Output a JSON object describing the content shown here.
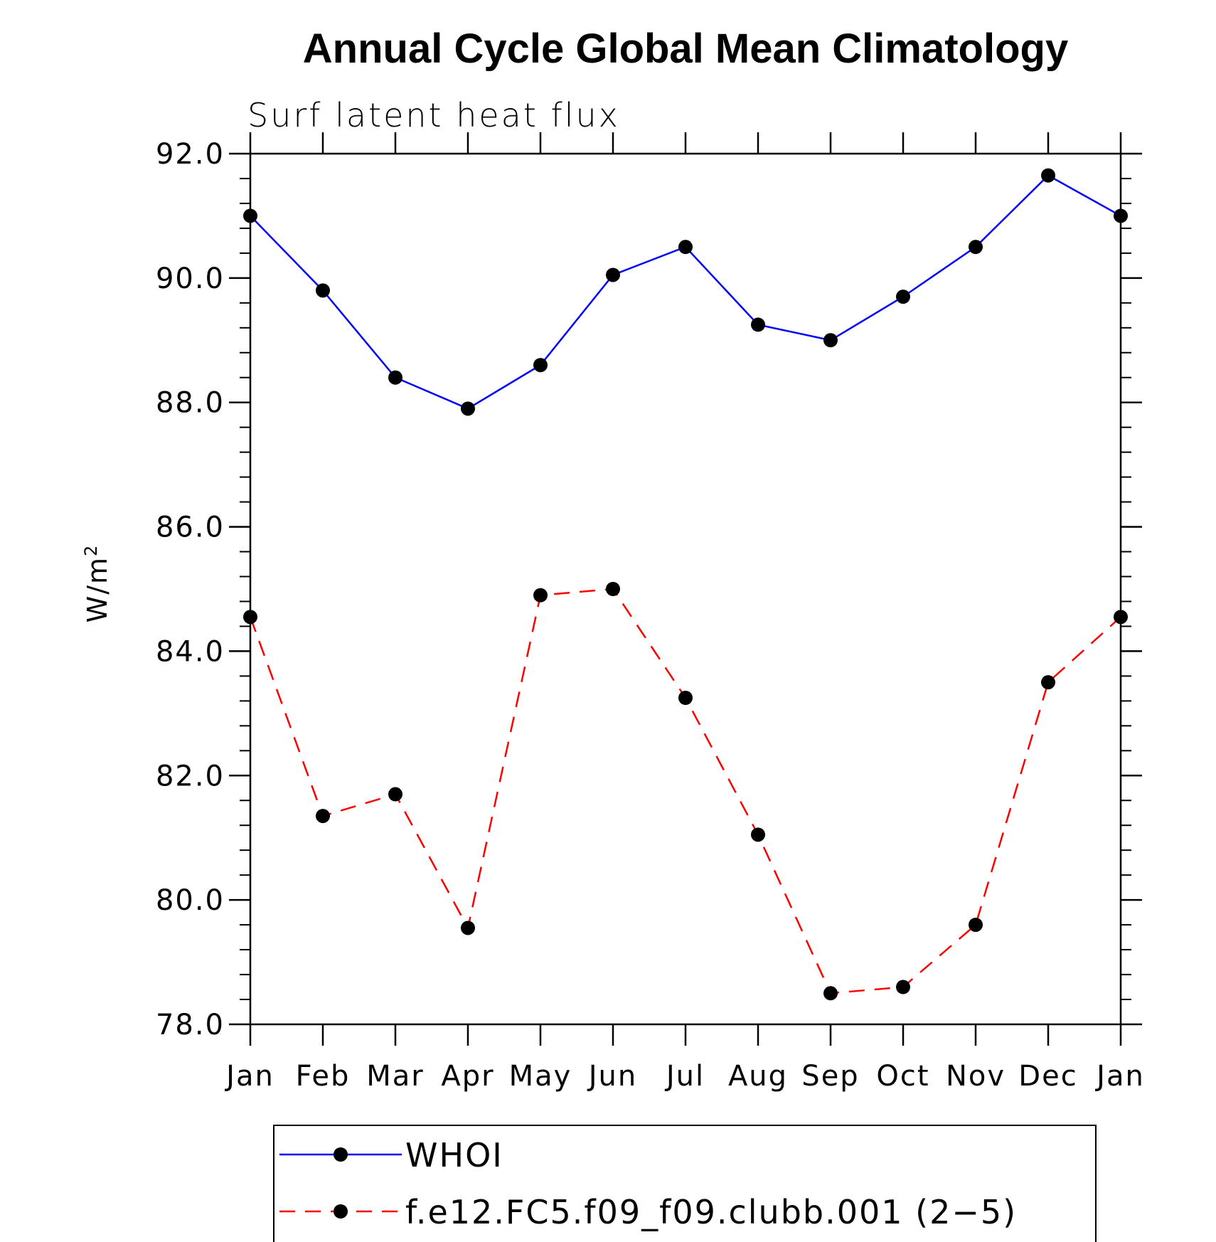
{
  "chart_data": {
    "type": "line",
    "title": "Annual Cycle Global Mean Climatology",
    "subtitle": "Surf latent heat flux",
    "ylabel": "W/m",
    "ylabel_sup": "2",
    "xlabel": "",
    "categories": [
      "Jan",
      "Feb",
      "Mar",
      "Apr",
      "May",
      "Jun",
      "Jul",
      "Aug",
      "Sep",
      "Oct",
      "Nov",
      "Dec",
      "Jan"
    ],
    "ylim": [
      78.0,
      92.0
    ],
    "yticks": [
      78.0,
      80.0,
      82.0,
      84.0,
      86.0,
      88.0,
      90.0,
      92.0
    ],
    "ytick_labels": [
      "78.0",
      "80.0",
      "82.0",
      "84.0",
      "86.0",
      "88.0",
      "90.0",
      "92.0"
    ],
    "grid": false,
    "legend_position": "bottom",
    "series": [
      {
        "name": "WHOI",
        "color": "#0000ff",
        "dash": "solid",
        "marker": "filled-circle",
        "values": [
          91.0,
          89.8,
          88.4,
          87.9,
          88.6,
          90.05,
          90.5,
          89.25,
          89.0,
          89.7,
          90.5,
          91.65,
          91.0
        ]
      },
      {
        "name": "f.e12.FC5.f09_f09.clubb.001 (2−5)",
        "color": "#ff0000",
        "dash": "dashed",
        "marker": "filled-circle",
        "values": [
          84.55,
          81.35,
          81.7,
          79.55,
          84.9,
          85.0,
          83.25,
          81.05,
          78.5,
          78.6,
          79.6,
          83.5,
          84.55
        ]
      }
    ]
  }
}
